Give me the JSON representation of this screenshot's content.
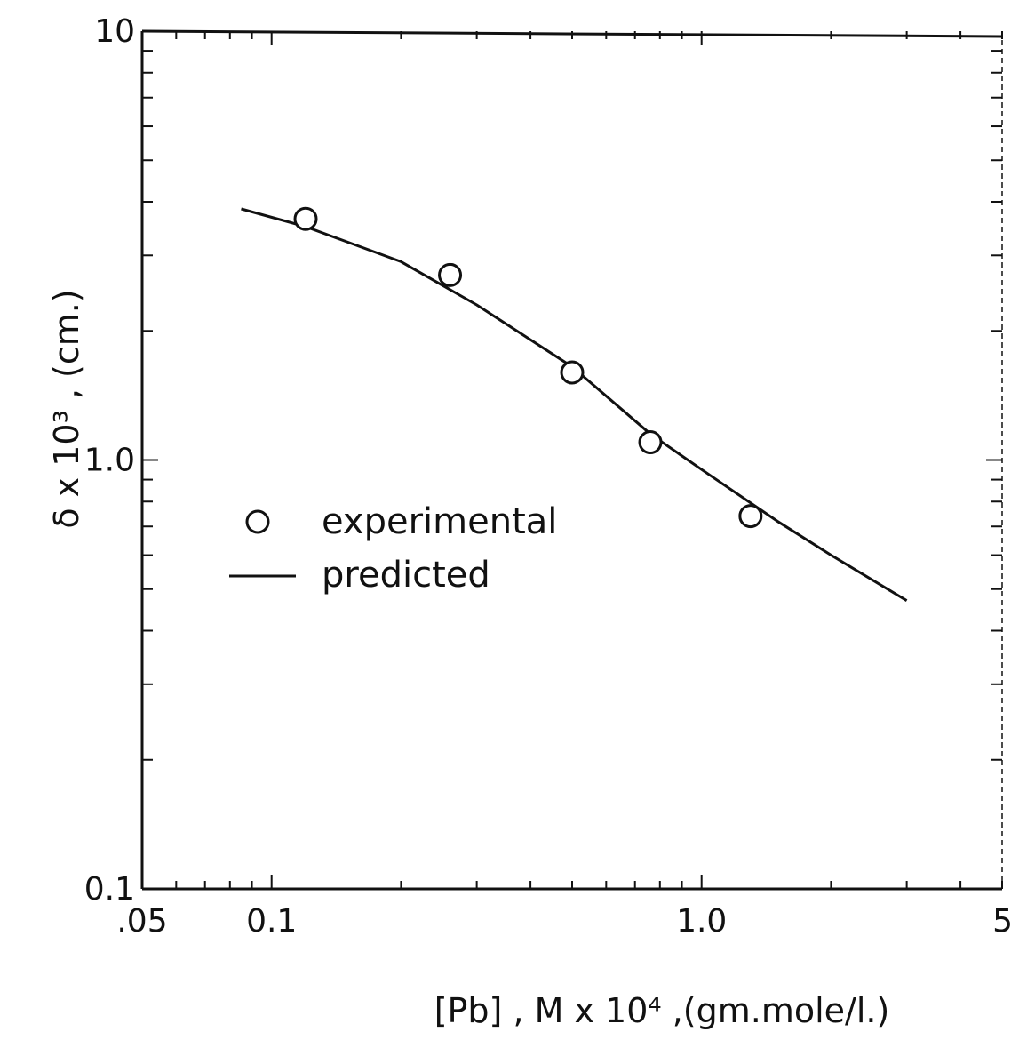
{
  "chart_data": {
    "type": "scatter",
    "xscale": "log",
    "yscale": "log",
    "xlim": [
      0.05,
      5
    ],
    "ylim": [
      0.1,
      10
    ],
    "xlabel": "[Pb] , M x 10⁴ ,(gm.mole/l.)",
    "ylabel": "δ x 10³ , (cm.)",
    "x_tick_labels": [
      {
        "value": 0.05,
        "label": ".05"
      },
      {
        "value": 0.1,
        "label": "0.1"
      },
      {
        "value": 1.0,
        "label": "1.0"
      },
      {
        "value": 5,
        "label": "5"
      }
    ],
    "y_tick_labels": [
      {
        "value": 0.1,
        "label": "0.1"
      },
      {
        "value": 1.0,
        "label": "1.0"
      },
      {
        "value": 10,
        "label": "10"
      }
    ],
    "grid": false,
    "legend": {
      "placement": "middle-left",
      "entries": [
        {
          "label": "experimental",
          "marker": "circle"
        },
        {
          "label": "predicted",
          "marker": "line"
        }
      ]
    },
    "series": [
      {
        "name": "experimental",
        "kind": "points",
        "x": [
          0.12,
          0.26,
          0.5,
          0.76,
          1.3
        ],
        "y": [
          3.65,
          2.7,
          1.6,
          1.1,
          0.74
        ]
      },
      {
        "name": "predicted",
        "kind": "line",
        "x": [
          0.085,
          0.12,
          0.2,
          0.3,
          0.5,
          0.76,
          1.0,
          1.5,
          2.0,
          3.0
        ],
        "y": [
          3.85,
          3.5,
          2.9,
          2.3,
          1.65,
          1.15,
          0.95,
          0.72,
          0.6,
          0.47
        ]
      }
    ]
  }
}
